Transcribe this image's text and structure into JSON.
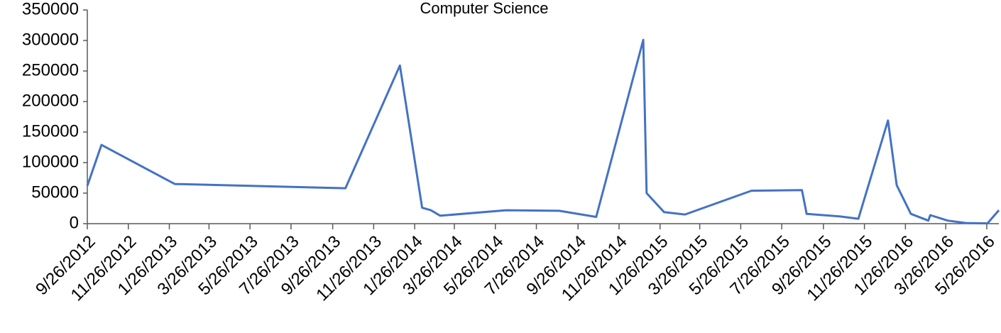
{
  "chart_data": {
    "type": "line",
    "title": "Computer Science",
    "x": [
      "9/26/2012",
      "10/17/2012",
      "2/3/2013",
      "10/15/2013",
      "1/4/2014",
      "2/6/2014",
      "2/19/2014",
      "3/5/2014",
      "6/11/2014",
      "8/29/2014",
      "10/23/2014",
      "1/1/2015",
      "1/6/2015",
      "2/1/2015",
      "3/4/2015",
      "6/11/2015",
      "8/25/2015",
      "9/1/2015",
      "10/20/2015",
      "11/17/2015",
      "12/31/2015",
      "1/13/2016",
      "2/3/2016",
      "2/29/2016",
      "3/3/2016",
      "3/29/2016",
      "4/25/2016",
      "5/27/2016",
      "6/13/2016"
    ],
    "series": [
      {
        "name": "Computer Science",
        "color": "#4472c4",
        "values": [
          62000,
          129000,
          65000,
          58000,
          259000,
          26000,
          22000,
          13000,
          22000,
          21000,
          11000,
          301000,
          50000,
          19000,
          15000,
          54000,
          55000,
          16000,
          12000,
          8000,
          169000,
          63000,
          16000,
          5000,
          14000,
          5000,
          1000,
          500,
          22000
        ]
      }
    ],
    "xlim": [
      "9/26/2012",
      "6/13/2016"
    ],
    "xticks": [
      "9/26/2012",
      "11/26/2012",
      "1/26/2013",
      "3/26/2013",
      "5/26/2013",
      "7/26/2013",
      "9/26/2013",
      "11/26/2013",
      "1/26/2014",
      "3/26/2014",
      "5/26/2014",
      "7/26/2014",
      "9/26/2014",
      "11/26/2014",
      "1/26/2015",
      "3/26/2015",
      "5/26/2015",
      "7/26/2015",
      "9/26/2015",
      "11/26/2015",
      "1/26/2016",
      "3/26/2016",
      "5/26/2016"
    ],
    "ylim": [
      0,
      350000
    ],
    "yticks": [
      0,
      50000,
      100000,
      150000,
      200000,
      250000,
      300000,
      350000
    ]
  }
}
